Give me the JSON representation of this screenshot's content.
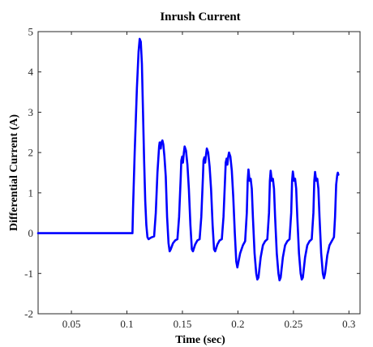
{
  "chart_data": {
    "type": "line",
    "title": "Inrush Current",
    "xlabel": "Time (sec)",
    "ylabel": "Differential Current (A)",
    "xlim": [
      0.02,
      0.31
    ],
    "ylim": [
      -2,
      5
    ],
    "xticks": [
      0.05,
      0.1,
      0.15,
      0.2,
      0.25,
      0.3
    ],
    "xtick_labels": [
      "0.05",
      "0.1",
      "0.15",
      "0.2",
      "0.25",
      "0.3"
    ],
    "yticks": [
      -2,
      -1,
      0,
      1,
      2,
      3,
      4,
      5
    ],
    "ytick_labels": [
      "-2",
      "-1",
      "0",
      "1",
      "2",
      "3",
      "4",
      "5"
    ],
    "grid": false,
    "series_color": "#0000ff",
    "series": [
      {
        "x": [
          0.02,
          0.105,
          0.1055,
          0.107,
          0.109,
          0.1105,
          0.1115,
          0.1125,
          0.1135,
          0.1145,
          0.1155,
          0.1165,
          0.1175,
          0.1185,
          0.1195,
          0.1205,
          0.1225,
          0.1245,
          0.126,
          0.1275,
          0.129,
          0.1295,
          0.1305,
          0.131,
          0.132,
          0.1328,
          0.1338,
          0.135,
          0.1362,
          0.1375,
          0.1385,
          0.1395,
          0.1415,
          0.1435,
          0.1455,
          0.147,
          0.1485,
          0.149,
          0.1498,
          0.1505,
          0.1513,
          0.152,
          0.1532,
          0.1545,
          0.1558,
          0.1572,
          0.1585,
          0.1595,
          0.1615,
          0.1635,
          0.1655,
          0.167,
          0.1685,
          0.169,
          0.1698,
          0.1705,
          0.1713,
          0.172,
          0.1732,
          0.1745,
          0.1758,
          0.1772,
          0.1785,
          0.1795,
          0.1815,
          0.1835,
          0.1855,
          0.187,
          0.1885,
          0.189,
          0.1898,
          0.1905,
          0.1913,
          0.192,
          0.1932,
          0.1945,
          0.1958,
          0.1972,
          0.1985,
          0.1995,
          0.202,
          0.2045,
          0.2065,
          0.208,
          0.2088,
          0.2095,
          0.2105,
          0.2115,
          0.2125,
          0.2135,
          0.215,
          0.2165,
          0.2175,
          0.2185,
          0.2205,
          0.2225,
          0.2245,
          0.2265,
          0.228,
          0.2288,
          0.2295,
          0.2305,
          0.2315,
          0.2325,
          0.2335,
          0.235,
          0.2365,
          0.2375,
          0.2385,
          0.2405,
          0.2425,
          0.2445,
          0.2465,
          0.248,
          0.2488,
          0.2495,
          0.2505,
          0.2515,
          0.2525,
          0.2535,
          0.255,
          0.2565,
          0.2575,
          0.2585,
          0.2605,
          0.2625,
          0.2645,
          0.2665,
          0.268,
          0.2688,
          0.2695,
          0.2705,
          0.2715,
          0.2725,
          0.2735,
          0.275,
          0.2765,
          0.2775,
          0.2785,
          0.2805,
          0.2825,
          0.2845,
          0.2865,
          0.2875,
          0.2885,
          0.2895,
          0.29,
          0.2905
        ],
        "values": [
          0,
          0,
          0.6,
          2.0,
          3.6,
          4.5,
          4.82,
          4.75,
          4.2,
          3.0,
          1.8,
          0.8,
          0.2,
          -0.1,
          -0.15,
          -0.13,
          -0.1,
          -0.08,
          0.5,
          1.5,
          2.15,
          2.25,
          2.1,
          2.25,
          2.3,
          2.2,
          1.9,
          1.4,
          0.4,
          -0.25,
          -0.45,
          -0.4,
          -0.25,
          -0.18,
          -0.15,
          0.4,
          1.4,
          1.8,
          1.9,
          1.75,
          2.0,
          2.15,
          2.05,
          1.7,
          1.1,
          0.2,
          -0.4,
          -0.45,
          -0.28,
          -0.18,
          -0.15,
          0.4,
          1.4,
          1.8,
          1.88,
          1.75,
          1.95,
          2.1,
          2.0,
          1.65,
          1.1,
          0.2,
          -0.4,
          -0.45,
          -0.28,
          -0.18,
          -0.15,
          0.4,
          1.4,
          1.75,
          1.85,
          1.7,
          1.9,
          2.0,
          1.9,
          1.55,
          0.9,
          0.0,
          -0.7,
          -0.85,
          -0.5,
          -0.3,
          -0.2,
          0.5,
          1.3,
          1.58,
          1.3,
          1.35,
          1.1,
          0.4,
          -0.5,
          -1.0,
          -1.15,
          -1.1,
          -0.6,
          -0.3,
          -0.2,
          -0.15,
          0.5,
          1.3,
          1.55,
          1.3,
          1.35,
          1.1,
          0.4,
          -0.5,
          -1.0,
          -1.17,
          -1.1,
          -0.6,
          -0.3,
          -0.2,
          -0.15,
          0.5,
          1.3,
          1.53,
          1.3,
          1.35,
          1.1,
          0.4,
          -0.5,
          -1.0,
          -1.15,
          -1.1,
          -0.6,
          -0.3,
          -0.2,
          -0.15,
          0.5,
          1.3,
          1.52,
          1.3,
          1.35,
          1.1,
          0.4,
          -0.5,
          -1.0,
          -1.12,
          -1.0,
          -0.55,
          -0.3,
          -0.2,
          -0.1,
          0.4,
          1.2,
          1.45,
          1.5,
          1.45
        ]
      }
    ]
  }
}
